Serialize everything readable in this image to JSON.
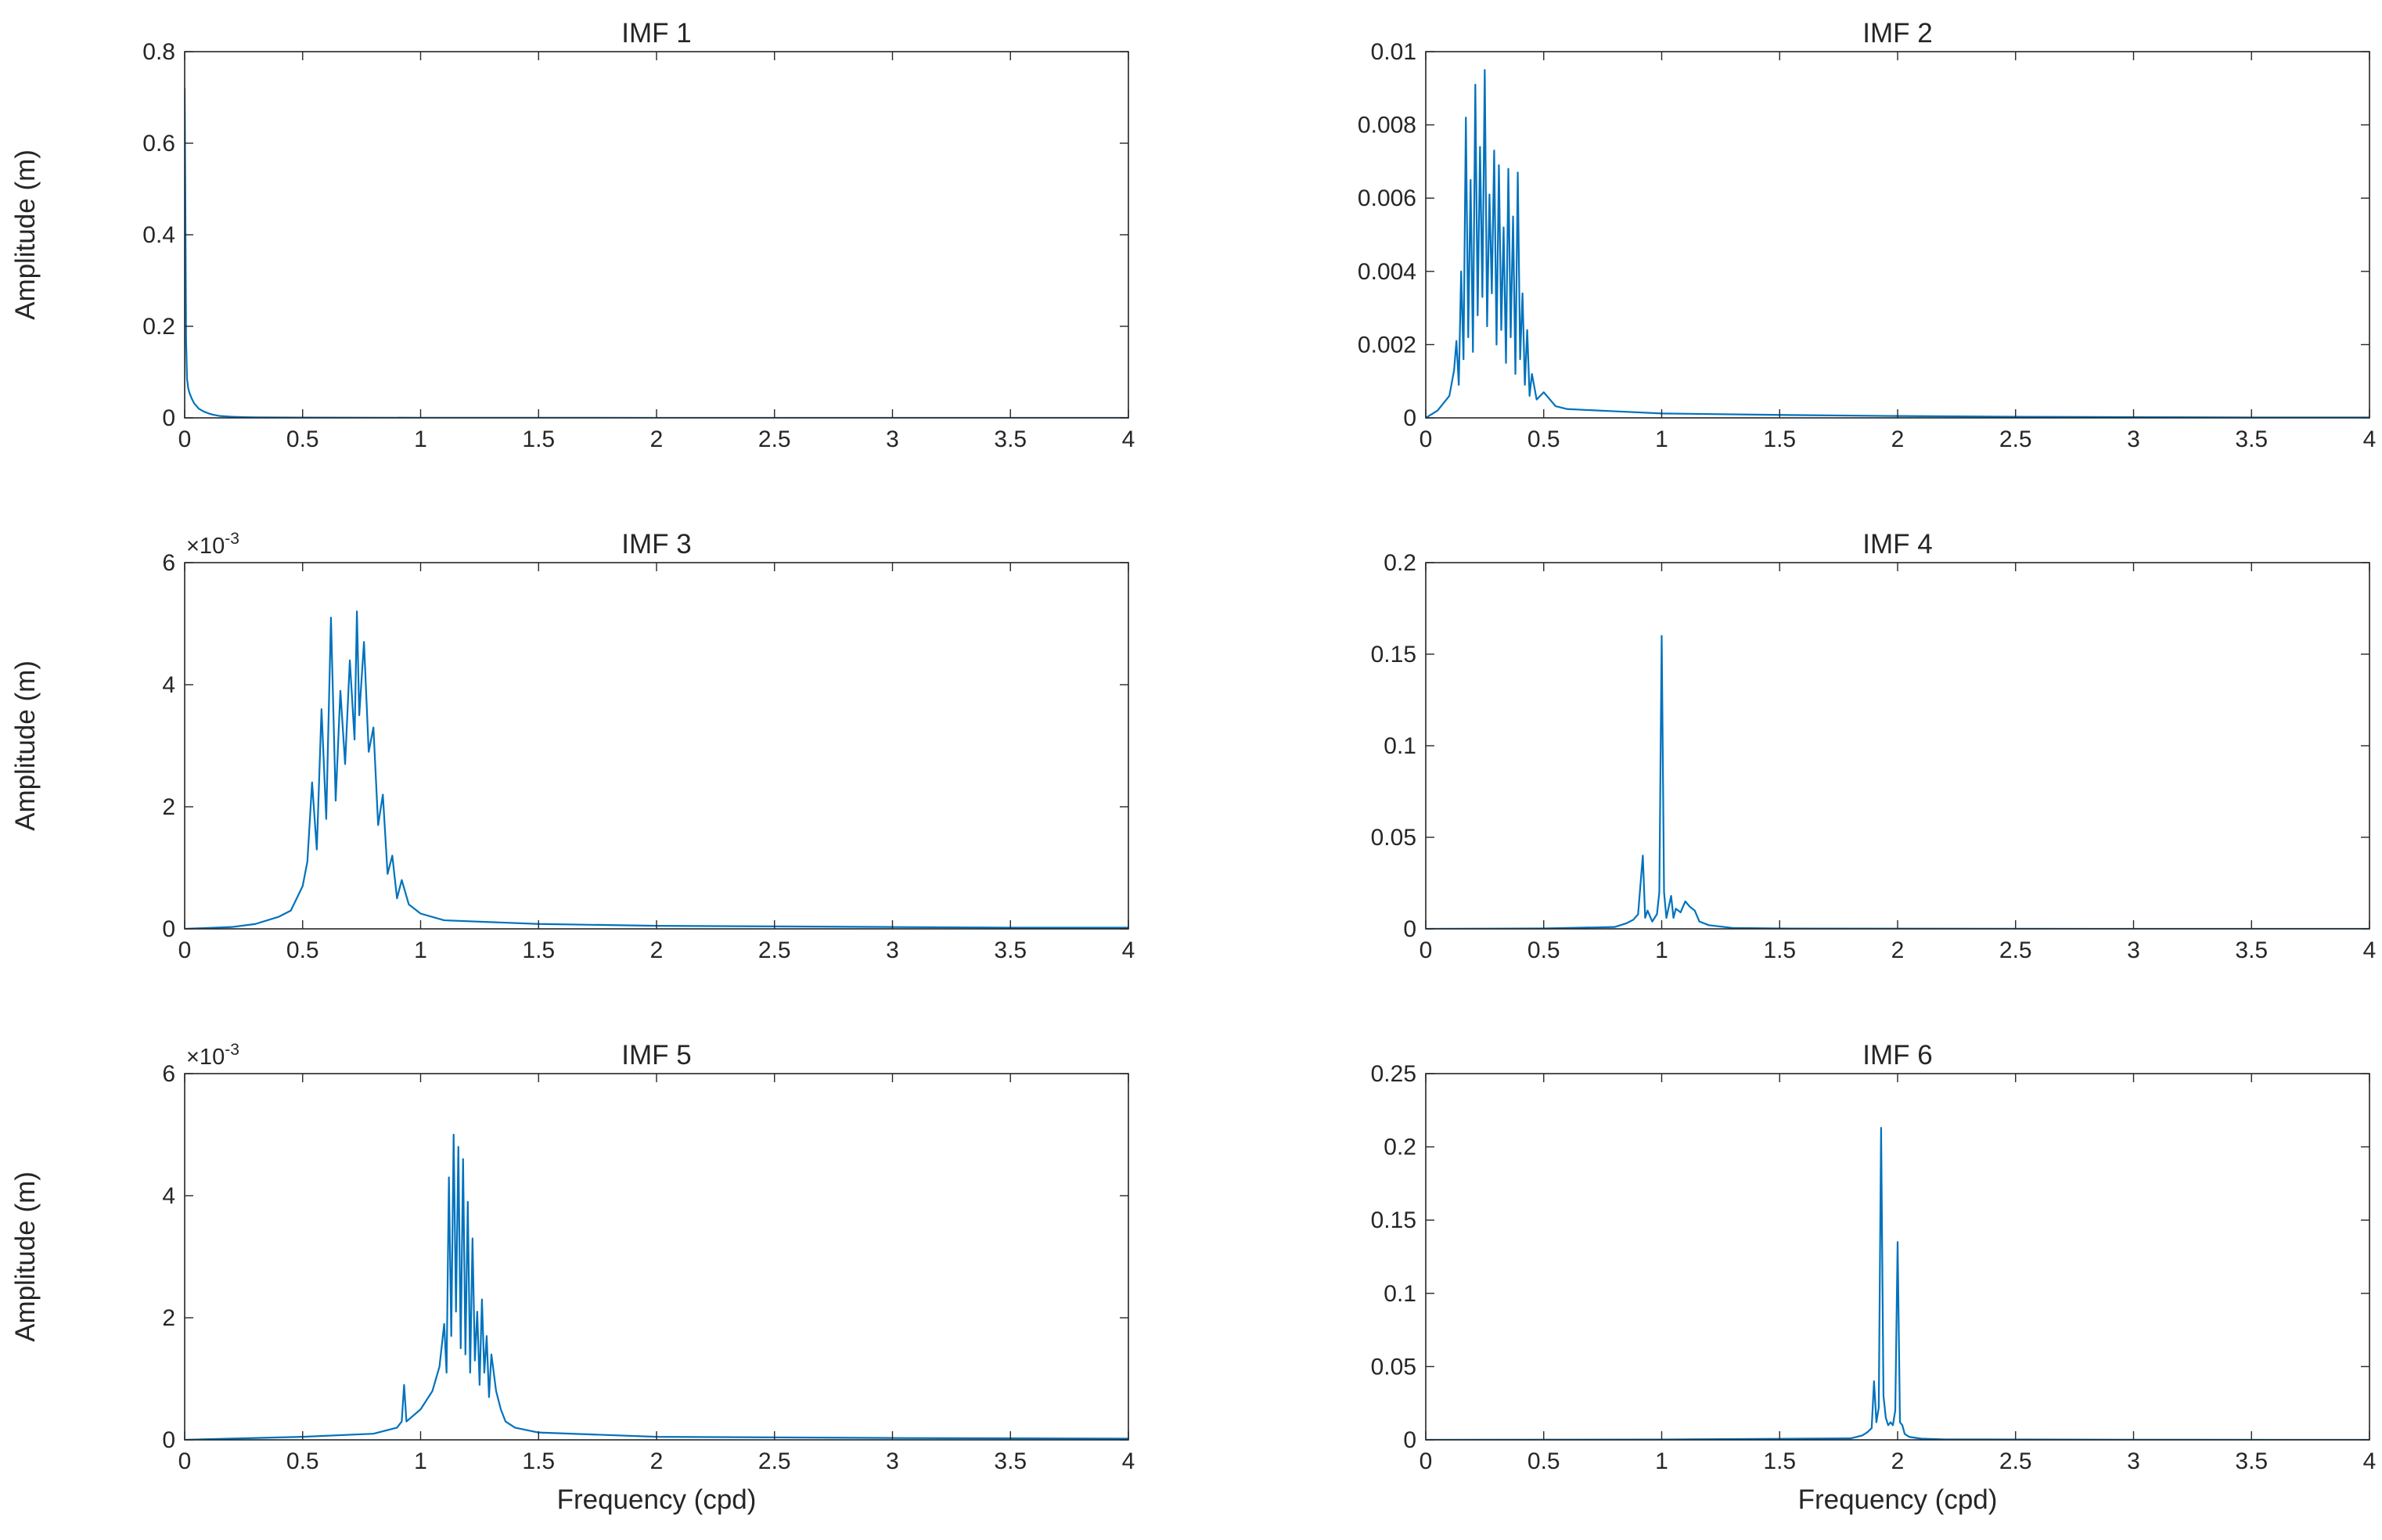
{
  "figure": {
    "background": "#ffffff",
    "line_color": "#0072BD",
    "axis_color": "#262626"
  },
  "chart_data": [
    {
      "type": "line",
      "title": "IMF 1",
      "xlabel": "",
      "ylabel": "Amplitude (m)",
      "xlim": [
        0,
        4
      ],
      "ylim": [
        0,
        0.8
      ],
      "xticks": [
        0,
        0.5,
        1,
        1.5,
        2,
        2.5,
        3,
        3.5,
        4
      ],
      "xtick_labels": [
        "0",
        "0.5",
        "1",
        "1.5",
        "2",
        "2.5",
        "3",
        "3.5",
        "4"
      ],
      "yticks": [
        0,
        0.2,
        0.4,
        0.6,
        0.8
      ],
      "ytick_labels": [
        "0",
        "0.2",
        "0.4",
        "0.6",
        "0.8"
      ],
      "exponent_label": "",
      "grid": false,
      "series": [
        {
          "color": "#0072BD",
          "x": [
            0,
            0.003,
            0.006,
            0.01,
            0.015,
            0.02,
            0.03,
            0.04,
            0.05,
            0.06,
            0.08,
            0.1,
            0.12,
            0.15,
            0.2,
            0.25,
            0.3,
            0.5,
            1,
            2,
            3,
            4
          ],
          "y": [
            0.72,
            0.46,
            0.17,
            0.085,
            0.065,
            0.055,
            0.042,
            0.032,
            0.026,
            0.02,
            0.014,
            0.01,
            0.007,
            0.004,
            0.0025,
            0.0015,
            0.001,
            0.0006,
            0.0003,
            0.0001,
            5e-05,
            3e-05
          ]
        }
      ]
    },
    {
      "type": "line",
      "title": "IMF 2",
      "xlabel": "",
      "ylabel": "",
      "xlim": [
        0,
        4
      ],
      "ylim": [
        0,
        0.01
      ],
      "xticks": [
        0,
        0.5,
        1,
        1.5,
        2,
        2.5,
        3,
        3.5,
        4
      ],
      "xtick_labels": [
        "0",
        "0.5",
        "1",
        "1.5",
        "2",
        "2.5",
        "3",
        "3.5",
        "4"
      ],
      "yticks": [
        0,
        0.002,
        0.004,
        0.006,
        0.008,
        0.01
      ],
      "ytick_labels": [
        "0",
        "0.002",
        "0.004",
        "0.006",
        "0.008",
        "0.01"
      ],
      "exponent_label": "",
      "grid": false,
      "series": [
        {
          "color": "#0072BD",
          "x": [
            0,
            0.05,
            0.1,
            0.12,
            0.13,
            0.14,
            0.15,
            0.16,
            0.17,
            0.18,
            0.19,
            0.2,
            0.21,
            0.22,
            0.23,
            0.24,
            0.25,
            0.26,
            0.27,
            0.28,
            0.29,
            0.3,
            0.31,
            0.32,
            0.33,
            0.34,
            0.35,
            0.36,
            0.37,
            0.38,
            0.39,
            0.4,
            0.41,
            0.42,
            0.43,
            0.44,
            0.45,
            0.47,
            0.5,
            0.55,
            0.6,
            0.8,
            1,
            1.5,
            2,
            2.5,
            3,
            3.5,
            4
          ],
          "y": [
            0,
            0.0002,
            0.0006,
            0.0013,
            0.0021,
            0.0009,
            0.004,
            0.0016,
            0.0082,
            0.0022,
            0.0065,
            0.0018,
            0.0091,
            0.0028,
            0.0074,
            0.0033,
            0.0095,
            0.0025,
            0.0061,
            0.0034,
            0.0073,
            0.002,
            0.0069,
            0.0024,
            0.0052,
            0.0015,
            0.0068,
            0.0022,
            0.0055,
            0.0012,
            0.0067,
            0.0016,
            0.0034,
            0.0009,
            0.0024,
            0.0006,
            0.0012,
            0.0005,
            0.0007,
            0.00032,
            0.00024,
            0.00018,
            0.00012,
            8e-05,
            5e-05,
            3e-05,
            2e-05,
            1e-05,
            1e-05
          ]
        }
      ]
    },
    {
      "type": "line",
      "title": "IMF 3",
      "xlabel": "",
      "ylabel": "Amplitude (m)",
      "xlim": [
        0,
        4
      ],
      "ylim": [
        0,
        0.006
      ],
      "xticks": [
        0,
        0.5,
        1,
        1.5,
        2,
        2.5,
        3,
        3.5,
        4
      ],
      "xtick_labels": [
        "0",
        "0.5",
        "1",
        "1.5",
        "2",
        "2.5",
        "3",
        "3.5",
        "4"
      ],
      "yticks": [
        0,
        0.002,
        0.004,
        0.006
      ],
      "ytick_labels": [
        "0",
        "2",
        "4",
        "6"
      ],
      "exponent_label": "-3",
      "grid": false,
      "series": [
        {
          "color": "#0072BD",
          "x": [
            0,
            0.2,
            0.3,
            0.4,
            0.45,
            0.5,
            0.52,
            0.54,
            0.56,
            0.58,
            0.6,
            0.62,
            0.64,
            0.66,
            0.68,
            0.7,
            0.72,
            0.73,
            0.74,
            0.76,
            0.78,
            0.8,
            0.82,
            0.84,
            0.86,
            0.88,
            0.9,
            0.92,
            0.95,
            1,
            1.1,
            1.5,
            2,
            2.5,
            3,
            3.5,
            4
          ],
          "y": [
            0,
            3e-05,
            8e-05,
            0.0002,
            0.0003,
            0.0007,
            0.0011,
            0.0024,
            0.0013,
            0.0036,
            0.0018,
            0.0051,
            0.0021,
            0.0039,
            0.0027,
            0.0044,
            0.0031,
            0.0052,
            0.0035,
            0.0047,
            0.0029,
            0.0033,
            0.0017,
            0.0022,
            0.0009,
            0.0012,
            0.0005,
            0.0008,
            0.0004,
            0.00025,
            0.00014,
            8e-05,
            5e-05,
            4e-05,
            3e-05,
            2e-05,
            2e-05
          ]
        }
      ]
    },
    {
      "type": "line",
      "title": "IMF 4",
      "xlabel": "",
      "ylabel": "",
      "xlim": [
        0,
        4
      ],
      "ylim": [
        0,
        0.2
      ],
      "xticks": [
        0,
        0.5,
        1,
        1.5,
        2,
        2.5,
        3,
        3.5,
        4
      ],
      "xtick_labels": [
        "0",
        "0.5",
        "1",
        "1.5",
        "2",
        "2.5",
        "3",
        "3.5",
        "4"
      ],
      "yticks": [
        0,
        0.05,
        0.1,
        0.15,
        0.2
      ],
      "ytick_labels": [
        "0",
        "0.05",
        "0.1",
        "0.15",
        "0.2"
      ],
      "exponent_label": "",
      "grid": false,
      "series": [
        {
          "color": "#0072BD",
          "x": [
            0,
            0.5,
            0.8,
            0.85,
            0.88,
            0.9,
            0.92,
            0.93,
            0.94,
            0.96,
            0.98,
            0.99,
            1,
            1.01,
            1.02,
            1.04,
            1.05,
            1.06,
            1.08,
            1.1,
            1.12,
            1.14,
            1.16,
            1.2,
            1.3,
            1.5,
            2,
            3,
            4
          ],
          "y": [
            0,
            0.0002,
            0.001,
            0.003,
            0.005,
            0.008,
            0.04,
            0.006,
            0.01,
            0.004,
            0.008,
            0.02,
            0.16,
            0.02,
            0.006,
            0.018,
            0.006,
            0.011,
            0.009,
            0.015,
            0.012,
            0.01,
            0.004,
            0.002,
            0.0005,
            0.0002,
            0.0001,
            0,
            0
          ]
        }
      ]
    },
    {
      "type": "line",
      "title": "IMF 5",
      "xlabel": "Frequency (cpd)",
      "ylabel": "Amplitude (m)",
      "xlim": [
        0,
        4
      ],
      "ylim": [
        0,
        0.006
      ],
      "xticks": [
        0,
        0.5,
        1,
        1.5,
        2,
        2.5,
        3,
        3.5,
        4
      ],
      "xtick_labels": [
        "0",
        "0.5",
        "1",
        "1.5",
        "2",
        "2.5",
        "3",
        "3.5",
        "4"
      ],
      "yticks": [
        0,
        0.002,
        0.004,
        0.006
      ],
      "ytick_labels": [
        "0",
        "2",
        "4",
        "6"
      ],
      "exponent_label": "-3",
      "grid": false,
      "series": [
        {
          "color": "#0072BD",
          "x": [
            0,
            0.5,
            0.8,
            0.9,
            0.92,
            0.93,
            0.94,
            1,
            1.05,
            1.08,
            1.1,
            1.11,
            1.12,
            1.13,
            1.14,
            1.15,
            1.16,
            1.17,
            1.18,
            1.19,
            1.2,
            1.21,
            1.22,
            1.23,
            1.24,
            1.25,
            1.26,
            1.27,
            1.28,
            1.29,
            1.3,
            1.32,
            1.34,
            1.36,
            1.4,
            1.5,
            2,
            3,
            4
          ],
          "y": [
            0,
            5e-05,
            0.0001,
            0.0002,
            0.0003,
            0.0009,
            0.0003,
            0.0005,
            0.0008,
            0.0012,
            0.0019,
            0.0011,
            0.0043,
            0.0017,
            0.005,
            0.0021,
            0.0048,
            0.0015,
            0.0046,
            0.0014,
            0.0039,
            0.0011,
            0.0033,
            0.0013,
            0.0021,
            0.0009,
            0.0023,
            0.0011,
            0.0017,
            0.0007,
            0.0014,
            0.0008,
            0.0005,
            0.0003,
            0.0002,
            0.00012,
            5e-05,
            3e-05,
            2e-05
          ]
        }
      ]
    },
    {
      "type": "line",
      "title": "IMF 6",
      "xlabel": "Frequency (cpd)",
      "ylabel": "",
      "xlim": [
        0,
        4
      ],
      "ylim": [
        0,
        0.25
      ],
      "xticks": [
        0,
        0.5,
        1,
        1.5,
        2,
        2.5,
        3,
        3.5,
        4
      ],
      "xtick_labels": [
        "0",
        "0.5",
        "1",
        "1.5",
        "2",
        "2.5",
        "3",
        "3.5",
        "4"
      ],
      "yticks": [
        0,
        0.05,
        0.1,
        0.15,
        0.2,
        0.25
      ],
      "ytick_labels": [
        "0",
        "0.05",
        "0.1",
        "0.15",
        "0.2",
        "0.25"
      ],
      "exponent_label": "",
      "grid": false,
      "series": [
        {
          "color": "#0072BD",
          "x": [
            0,
            1,
            1.8,
            1.85,
            1.87,
            1.89,
            1.9,
            1.91,
            1.92,
            1.93,
            1.94,
            1.95,
            1.96,
            1.97,
            1.98,
            1.99,
            2,
            2.01,
            2.02,
            2.03,
            2.05,
            2.1,
            2.2,
            3,
            4
          ],
          "y": [
            0,
            0.0002,
            0.001,
            0.003,
            0.005,
            0.008,
            0.04,
            0.012,
            0.022,
            0.213,
            0.03,
            0.015,
            0.01,
            0.012,
            0.01,
            0.02,
            0.135,
            0.012,
            0.01,
            0.004,
            0.002,
            0.0008,
            0.0003,
            0.0001,
            0
          ]
        }
      ]
    }
  ]
}
